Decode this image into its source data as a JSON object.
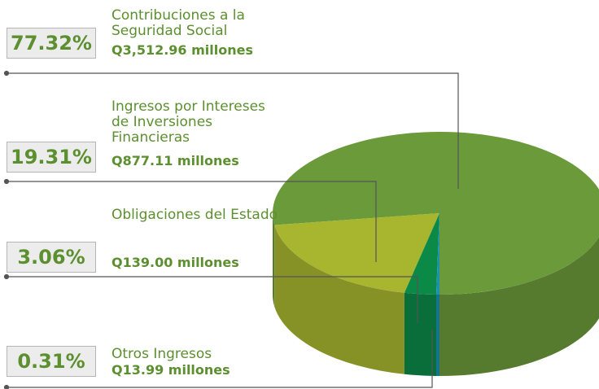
{
  "chart_data": {
    "type": "pie",
    "categories": [
      "Contribuciones a la Seguridad Social",
      "Ingresos por Intereses de Inversiones Financieras",
      "Obligaciones del Estado",
      "Otros Ingresos"
    ],
    "values": [
      77.32,
      19.31,
      3.06,
      0.31
    ],
    "value_labels": [
      "77.32%",
      "19.31%",
      "3.06%",
      "0.31%"
    ],
    "amounts": [
      "Q3,512.96 millones",
      "Q877.11 millones",
      "Q139.00 millones",
      "Q13.99 millones"
    ],
    "colors": [
      "#6b9a3a",
      "#a8b52f",
      "#0b8a47",
      "#1b90b3"
    ]
  }
}
